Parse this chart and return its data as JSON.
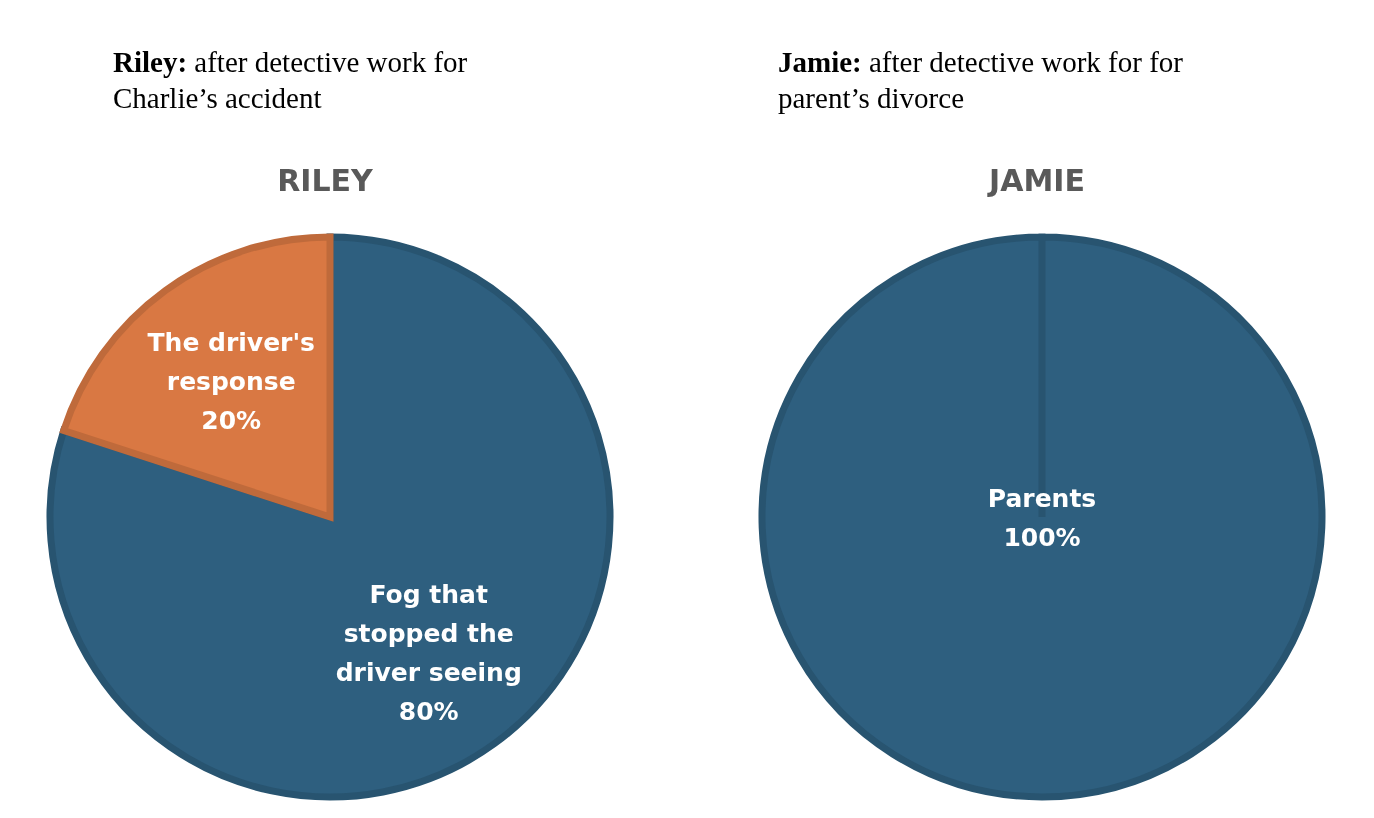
{
  "chart_data": [
    {
      "type": "pie",
      "title": "RILEY",
      "subtitle": "Riley: after detective work for Charlie’s accident",
      "categories": [
        "Fog that stopped the driver seeing",
        "The driver's response"
      ],
      "values": [
        80,
        20
      ],
      "colors": [
        "#2e5f7f",
        "#d97843"
      ],
      "value_labels": [
        "80%",
        "20%"
      ],
      "legend": false
    },
    {
      "type": "pie",
      "title": "JAMIE",
      "subtitle": "Jamie: after detective work for for parent’s divorce",
      "categories": [
        "Parents"
      ],
      "values": [
        100
      ],
      "colors": [
        "#2e5f7f"
      ],
      "value_labels": [
        "100%"
      ],
      "legend": false
    }
  ]
}
